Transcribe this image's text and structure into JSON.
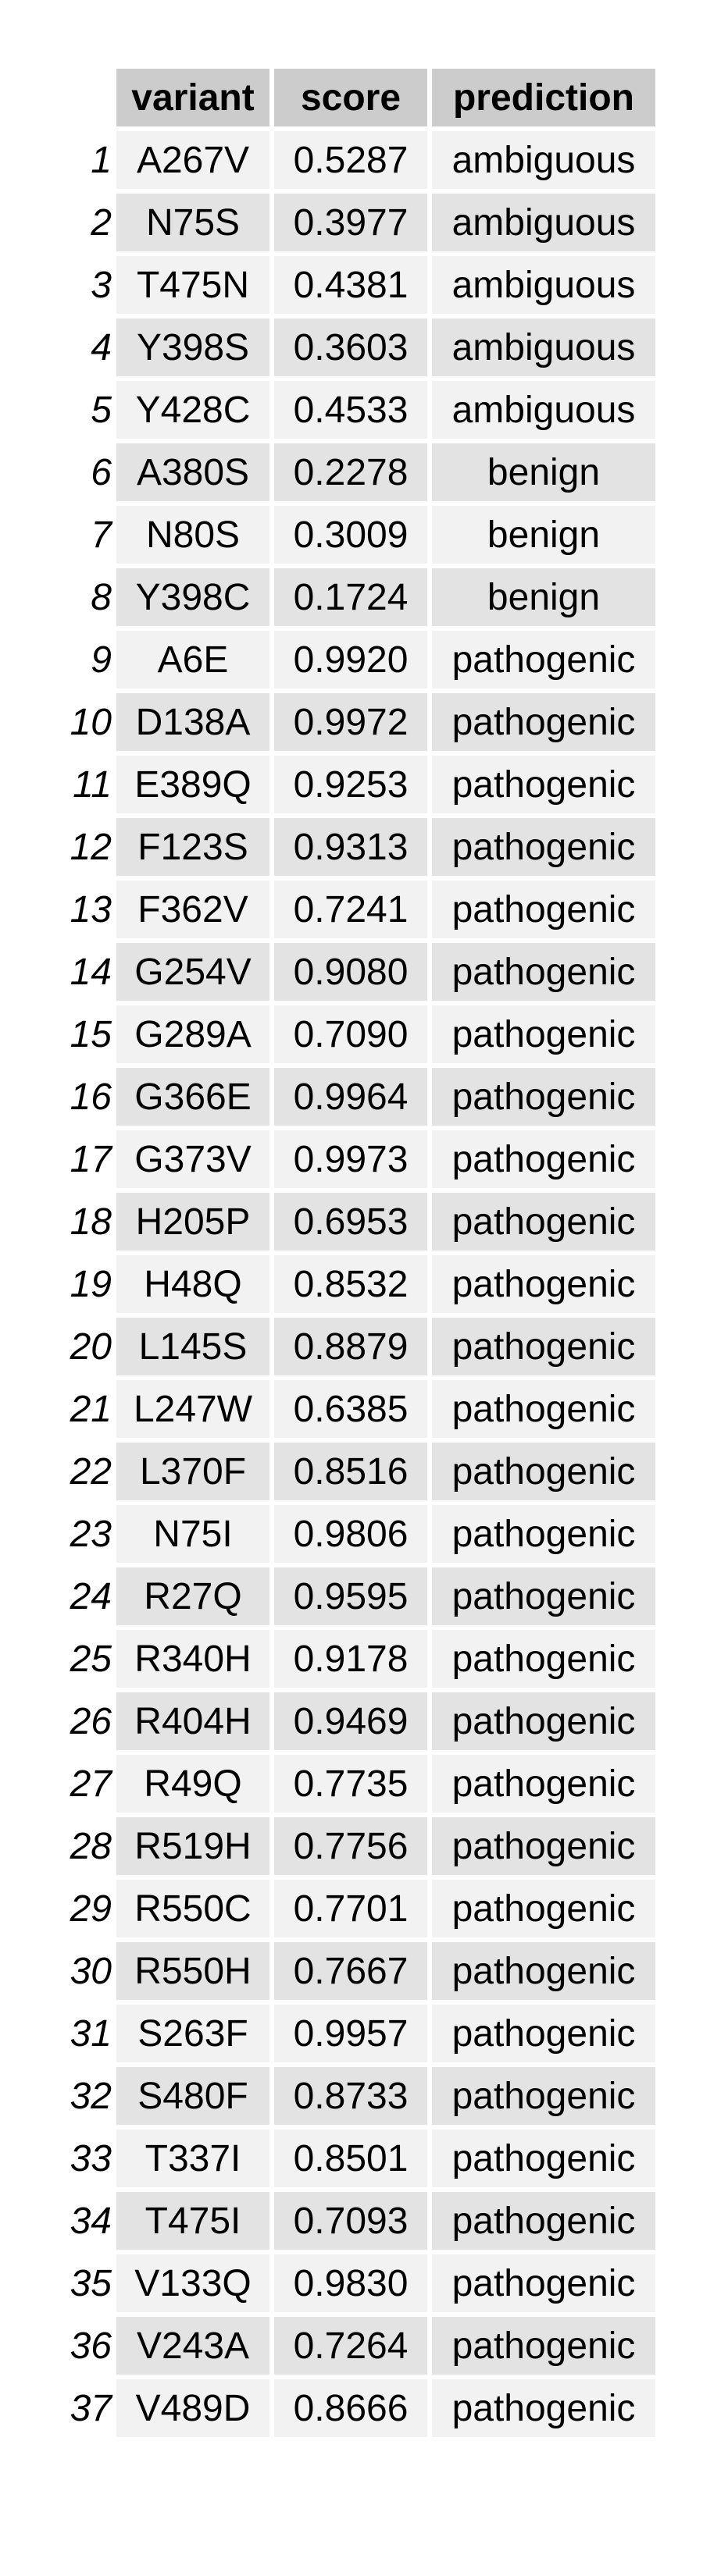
{
  "chart_data": {
    "type": "table",
    "columns": [
      "variant",
      "score",
      "prediction"
    ],
    "rows": [
      {
        "index": "1",
        "variant": "A267V",
        "score": "0.5287",
        "prediction": "ambiguous"
      },
      {
        "index": "2",
        "variant": "N75S",
        "score": "0.3977",
        "prediction": "ambiguous"
      },
      {
        "index": "3",
        "variant": "T475N",
        "score": "0.4381",
        "prediction": "ambiguous"
      },
      {
        "index": "4",
        "variant": "Y398S",
        "score": "0.3603",
        "prediction": "ambiguous"
      },
      {
        "index": "5",
        "variant": "Y428C",
        "score": "0.4533",
        "prediction": "ambiguous"
      },
      {
        "index": "6",
        "variant": "A380S",
        "score": "0.2278",
        "prediction": "benign"
      },
      {
        "index": "7",
        "variant": "N80S",
        "score": "0.3009",
        "prediction": "benign"
      },
      {
        "index": "8",
        "variant": "Y398C",
        "score": "0.1724",
        "prediction": "benign"
      },
      {
        "index": "9",
        "variant": "A6E",
        "score": "0.9920",
        "prediction": "pathogenic"
      },
      {
        "index": "10",
        "variant": "D138A",
        "score": "0.9972",
        "prediction": "pathogenic"
      },
      {
        "index": "11",
        "variant": "E389Q",
        "score": "0.9253",
        "prediction": "pathogenic"
      },
      {
        "index": "12",
        "variant": "F123S",
        "score": "0.9313",
        "prediction": "pathogenic"
      },
      {
        "index": "13",
        "variant": "F362V",
        "score": "0.7241",
        "prediction": "pathogenic"
      },
      {
        "index": "14",
        "variant": "G254V",
        "score": "0.9080",
        "prediction": "pathogenic"
      },
      {
        "index": "15",
        "variant": "G289A",
        "score": "0.7090",
        "prediction": "pathogenic"
      },
      {
        "index": "16",
        "variant": "G366E",
        "score": "0.9964",
        "prediction": "pathogenic"
      },
      {
        "index": "17",
        "variant": "G373V",
        "score": "0.9973",
        "prediction": "pathogenic"
      },
      {
        "index": "18",
        "variant": "H205P",
        "score": "0.6953",
        "prediction": "pathogenic"
      },
      {
        "index": "19",
        "variant": "H48Q",
        "score": "0.8532",
        "prediction": "pathogenic"
      },
      {
        "index": "20",
        "variant": "L145S",
        "score": "0.8879",
        "prediction": "pathogenic"
      },
      {
        "index": "21",
        "variant": "L247W",
        "score": "0.6385",
        "prediction": "pathogenic"
      },
      {
        "index": "22",
        "variant": "L370F",
        "score": "0.8516",
        "prediction": "pathogenic"
      },
      {
        "index": "23",
        "variant": "N75I",
        "score": "0.9806",
        "prediction": "pathogenic"
      },
      {
        "index": "24",
        "variant": "R27Q",
        "score": "0.9595",
        "prediction": "pathogenic"
      },
      {
        "index": "25",
        "variant": "R340H",
        "score": "0.9178",
        "prediction": "pathogenic"
      },
      {
        "index": "26",
        "variant": "R404H",
        "score": "0.9469",
        "prediction": "pathogenic"
      },
      {
        "index": "27",
        "variant": "R49Q",
        "score": "0.7735",
        "prediction": "pathogenic"
      },
      {
        "index": "28",
        "variant": "R519H",
        "score": "0.7756",
        "prediction": "pathogenic"
      },
      {
        "index": "29",
        "variant": "R550C",
        "score": "0.7701",
        "prediction": "pathogenic"
      },
      {
        "index": "30",
        "variant": "R550H",
        "score": "0.7667",
        "prediction": "pathogenic"
      },
      {
        "index": "31",
        "variant": "S263F",
        "score": "0.9957",
        "prediction": "pathogenic"
      },
      {
        "index": "32",
        "variant": "S480F",
        "score": "0.8733",
        "prediction": "pathogenic"
      },
      {
        "index": "33",
        "variant": "T337I",
        "score": "0.8501",
        "prediction": "pathogenic"
      },
      {
        "index": "34",
        "variant": "T475I",
        "score": "0.7093",
        "prediction": "pathogenic"
      },
      {
        "index": "35",
        "variant": "V133Q",
        "score": "0.9830",
        "prediction": "pathogenic"
      },
      {
        "index": "36",
        "variant": "V243A",
        "score": "0.7264",
        "prediction": "pathogenic"
      },
      {
        "index": "37",
        "variant": "V489D",
        "score": "0.8666",
        "prediction": "pathogenic"
      }
    ]
  },
  "style": {
    "header_bg": "#cccccc",
    "row_bg_odd": "#f2f2f2",
    "row_bg_even": "#e3e3e3",
    "text_color": "#000000"
  }
}
